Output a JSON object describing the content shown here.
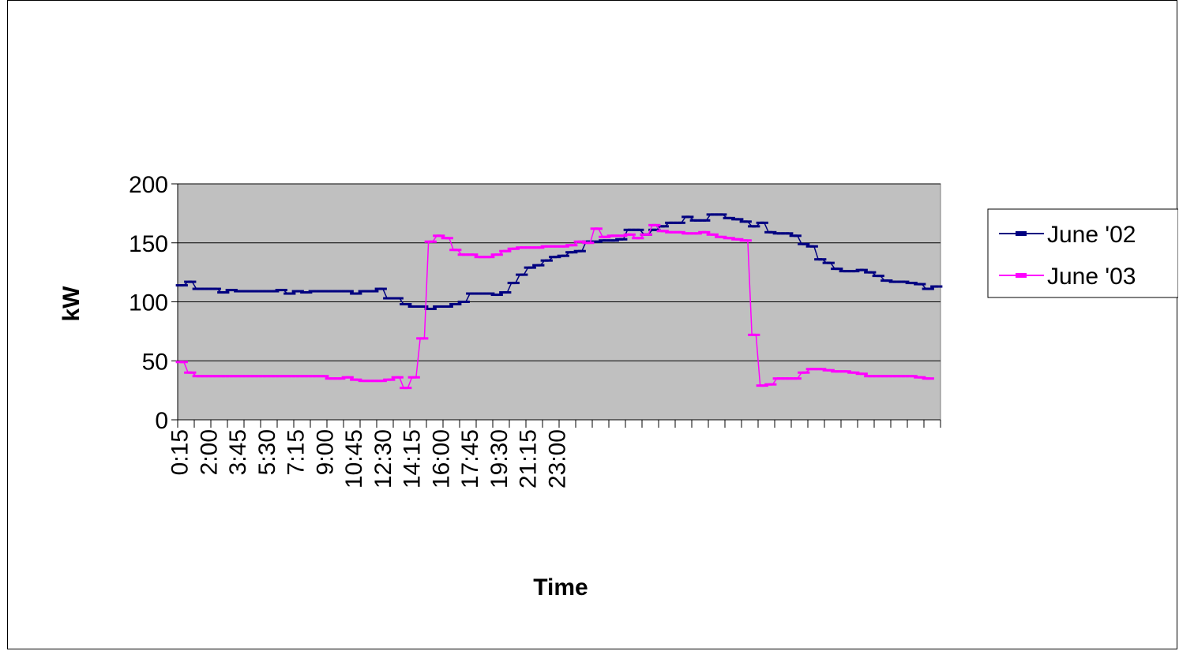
{
  "chart_data": {
    "type": "line",
    "title": "",
    "xlabel": "Time",
    "ylabel": "kW",
    "ylim": [
      0,
      200
    ],
    "yticks": [
      0,
      50,
      100,
      150,
      200
    ],
    "xtick_labels": [
      "0:15",
      "2:00",
      "3:45",
      "5:30",
      "7:15",
      "9:00",
      "10:45",
      "12:30",
      "14:15",
      "16:00",
      "17:45",
      "19:30",
      "21:15",
      "23:00"
    ],
    "x_interval": "15 min",
    "grid": "horizontal",
    "plot_background": "#c0c0c0",
    "legend_position": "right",
    "series": [
      {
        "name": "June '02",
        "color": "#000080",
        "values": [
          114,
          114,
          117,
          117,
          111,
          111,
          111,
          111,
          111,
          111,
          108,
          108,
          110,
          110,
          109,
          109,
          109,
          109,
          109,
          109,
          109,
          109,
          109,
          109,
          110,
          110,
          107,
          107,
          109,
          109,
          108,
          108,
          109,
          109,
          109,
          109,
          109,
          109,
          109,
          109,
          109,
          109,
          107,
          107,
          109,
          109,
          109,
          109,
          111,
          111,
          103,
          103,
          103,
          103,
          98,
          98,
          96,
          96,
          96,
          96,
          94,
          94,
          96,
          96,
          96,
          96,
          98,
          98,
          100,
          100,
          107,
          107,
          107,
          107,
          107,
          107,
          106,
          106,
          108,
          108,
          116,
          116,
          123,
          123,
          129,
          129,
          131,
          131,
          135,
          135,
          138,
          138,
          139,
          139,
          142,
          142,
          143,
          143,
          151,
          151,
          151,
          151,
          152,
          152,
          152,
          152,
          153,
          153,
          161,
          161,
          161,
          161,
          157,
          157,
          161,
          161,
          164,
          164,
          167,
          167,
          167,
          167,
          172,
          172,
          169,
          169,
          169,
          169,
          174,
          174,
          174,
          174,
          171,
          171,
          170,
          170,
          168,
          168,
          164,
          164,
          167,
          167,
          159,
          159,
          158,
          158,
          158,
          158,
          156,
          156,
          149,
          149,
          147,
          147,
          136,
          136,
          133,
          133,
          128,
          128,
          126,
          126,
          126,
          126,
          127,
          127,
          125,
          125,
          122,
          122,
          118,
          118,
          117,
          117,
          117,
          117,
          116,
          116,
          115,
          115,
          111,
          111,
          113,
          113
        ]
      },
      {
        "name": "June '03",
        "color": "#ff00ff",
        "values": [
          49,
          49,
          40,
          40,
          37,
          37,
          37,
          37,
          37,
          37,
          37,
          37,
          37,
          37,
          37,
          37,
          37,
          37,
          37,
          37,
          37,
          37,
          37,
          37,
          37,
          37,
          37,
          37,
          37,
          37,
          37,
          37,
          37,
          37,
          37,
          37,
          35,
          35,
          35,
          35,
          36,
          36,
          34,
          34,
          33,
          33,
          33,
          33,
          33,
          33,
          34,
          34,
          36,
          36,
          27,
          27,
          36,
          36,
          69,
          69,
          151,
          151,
          156,
          156,
          154,
          154,
          144,
          144,
          140,
          140,
          140,
          140,
          138,
          138,
          138,
          138,
          140,
          140,
          143,
          143,
          145,
          145,
          146,
          146,
          146,
          146,
          146,
          146,
          147,
          147,
          147,
          147,
          147,
          147,
          148,
          148,
          151,
          151,
          150,
          150,
          162,
          162,
          155,
          155,
          156,
          156,
          156,
          156,
          157,
          157,
          154,
          154,
          157,
          157,
          165,
          165,
          160,
          160,
          159,
          159,
          159,
          159,
          158,
          158,
          158,
          158,
          159,
          159,
          157,
          157,
          155,
          155,
          154,
          154,
          153,
          153,
          152,
          152,
          72,
          72,
          29,
          29,
          30,
          30,
          35,
          35,
          35,
          35,
          35,
          35,
          40,
          40,
          43,
          43,
          43,
          43,
          42,
          42,
          41,
          41,
          41,
          41,
          40,
          40,
          39,
          39,
          37,
          37,
          37,
          37,
          37,
          37,
          37,
          37,
          37,
          37,
          37,
          37,
          36,
          36,
          35,
          35
        ]
      }
    ]
  }
}
